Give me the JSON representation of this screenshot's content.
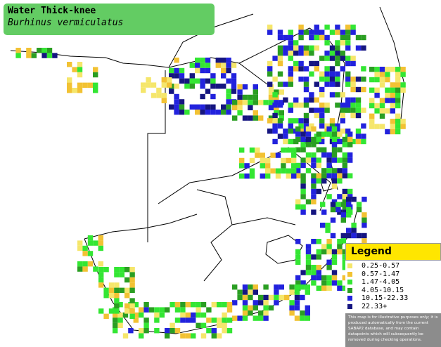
{
  "title": {
    "common_name": "Water Thick-knee",
    "scientific_name": "Burhinus vermiculatus",
    "box_color": "#63cc63"
  },
  "legend": {
    "heading": "Legend",
    "header_color": "#ffe600",
    "items": [
      {
        "label": "0.25-0.57",
        "color": "#f5e66b"
      },
      {
        "label": "0.57-1.47",
        "color": "#f2c233"
      },
      {
        "label": "1.47-4.05",
        "color": "#33e633"
      },
      {
        "label": "4.05-10.15",
        "color": "#2a9e22"
      },
      {
        "label": "10.15-22.33",
        "color": "#2222dd"
      },
      {
        "label": "22.33+",
        "color": "#151580"
      }
    ],
    "note": "This map is for illustrative purposes only; it is produced automatically from the current SABAP2 database, and may contain datapoints which will subsequently be removed during checking operations."
  },
  "map": {
    "land_color": "#ffffff",
    "boundary_color": "#000000"
  }
}
